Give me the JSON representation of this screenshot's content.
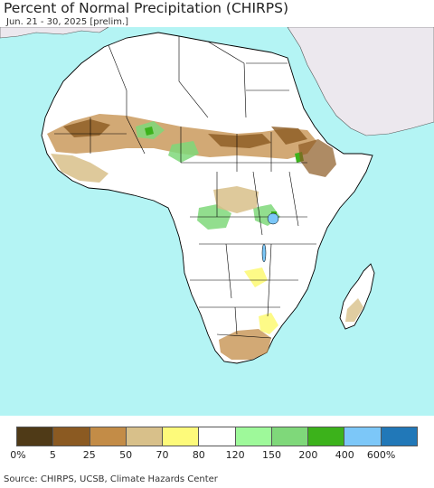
{
  "title": "Percent of Normal Precipitation (CHIRPS)",
  "subtitle": "Jun. 21 - 30, 2025 [prelim.]",
  "source": "Source: CHIRPS, UCSB, Climate Hazards Center",
  "map": {
    "region": "Africa",
    "ocean_color": "#b4f4f4",
    "land_color": "#ffffff",
    "non_analysis_land_color": "#ece8ee",
    "border_color": "#000000"
  },
  "legend": {
    "colors": [
      "#4f3a17",
      "#8b5a22",
      "#c38c47",
      "#d8c08a",
      "#fdfa7a",
      "#ffffff",
      "#9ef99a",
      "#7fd87a",
      "#3cb21b",
      "#7cc7f8",
      "#2178b8"
    ],
    "labels": [
      "0%",
      "5",
      "25",
      "50",
      "70",
      "80",
      "120",
      "150",
      "200",
      "400",
      "600%"
    ]
  }
}
